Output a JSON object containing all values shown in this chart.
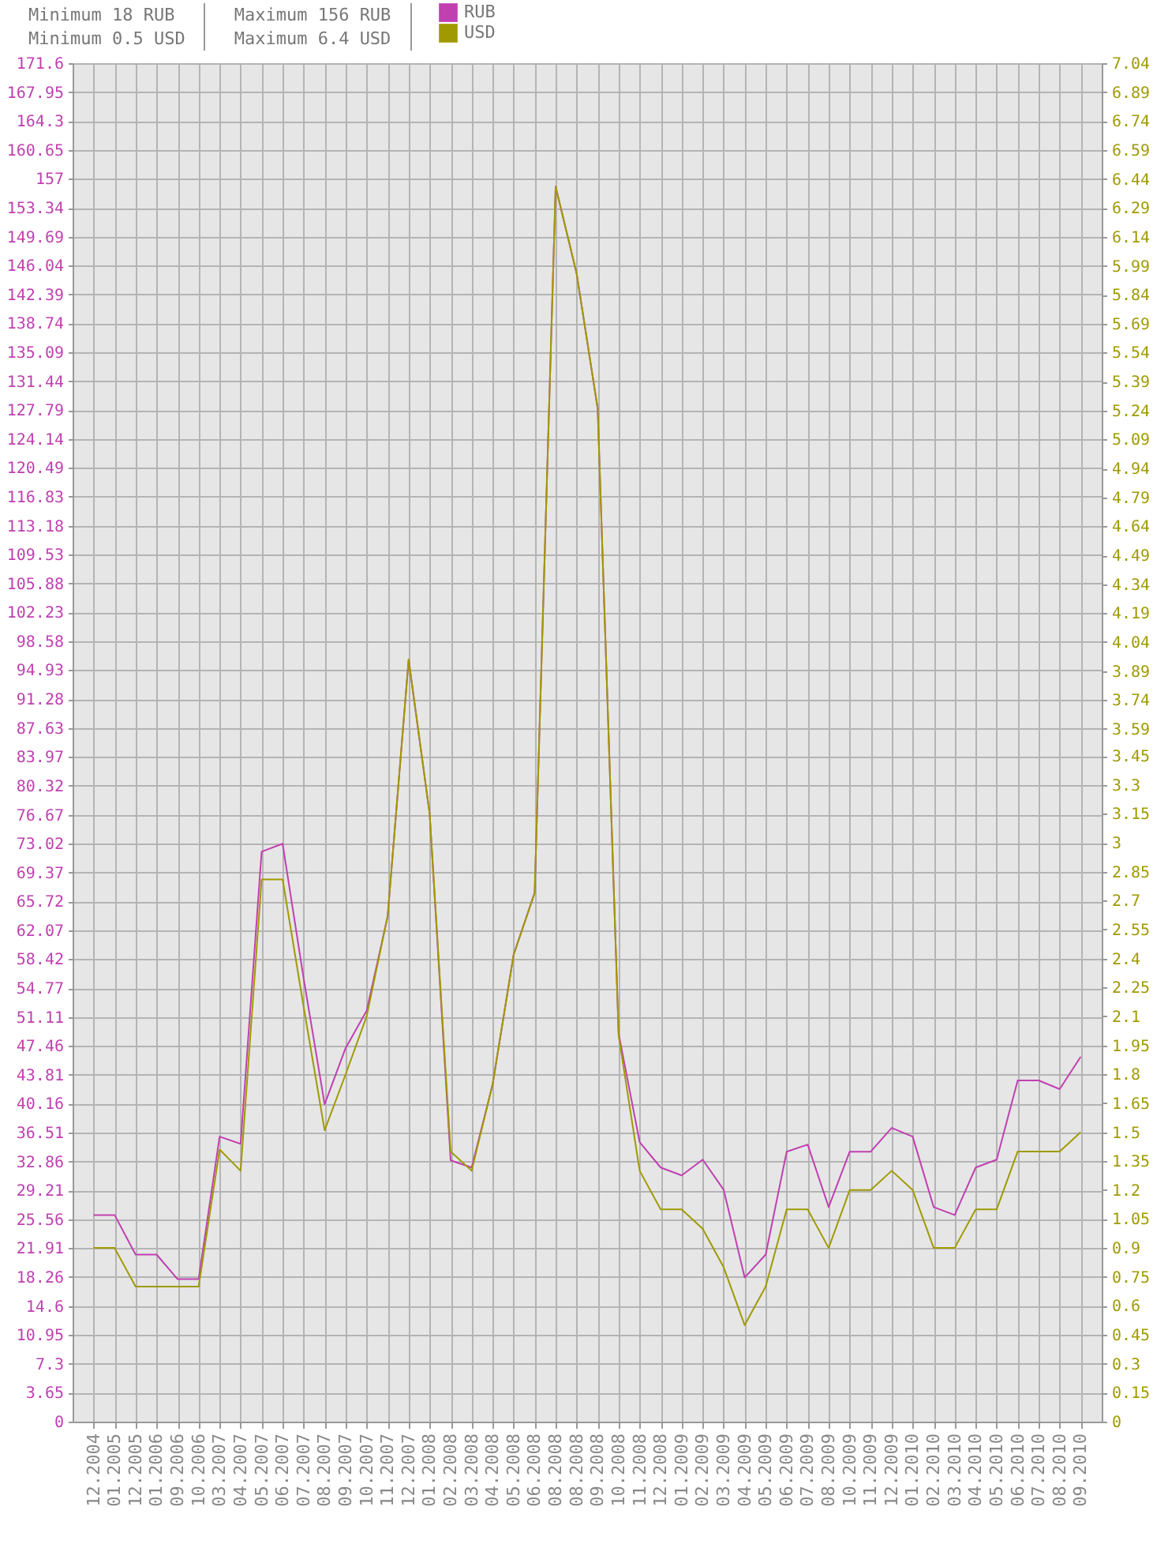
{
  "chart_data": {
    "type": "line",
    "annotations": [
      "Minimum 18 RUB",
      "Minimum 0.5 USD",
      "Maximum 156 RUB",
      "Maximum 6.4 USD"
    ],
    "categories": [
      "12.2004",
      "01.2005",
      "12.2005",
      "01.2006",
      "09.2006",
      "10.2006",
      "03.2007",
      "04.2007",
      "05.2007",
      "06.2007",
      "07.2007",
      "08.2007",
      "09.2007",
      "10.2007",
      "11.2007",
      "12.2007",
      "01.2008",
      "02.2008",
      "03.2008",
      "04.2008",
      "05.2008",
      "06.2008",
      "08.2008",
      "08.2008",
      "09.2008",
      "10.2008",
      "11.2008",
      "12.2008",
      "01.2009",
      "02.2009",
      "03.2009",
      "04.2009",
      "05.2009",
      "06.2009",
      "07.2009",
      "08.2009",
      "10.2009",
      "11.2009",
      "12.2009",
      "01.2010",
      "02.2010",
      "03.2010",
      "04.2010",
      "05.2010",
      "06.2010",
      "07.2010",
      "08.2010",
      "09.2010"
    ],
    "series": [
      {
        "name": "RUB",
        "color": "#c040b0",
        "values": [
          26.1,
          26.1,
          21.1,
          21.1,
          18,
          18,
          36,
          35.1,
          72,
          73,
          56,
          40.1,
          47.2,
          51.9,
          63.8,
          96.2,
          76.8,
          33,
          32.1,
          42.6,
          59,
          66.8,
          156,
          145,
          128,
          49,
          35.3,
          32.1,
          31.1,
          33.1,
          29.3,
          18.2,
          21.1,
          34.1,
          35,
          27.1,
          34.1,
          34.1,
          37.1,
          36,
          27.1,
          26.1,
          32.1,
          33.1,
          43.1,
          43.1,
          42,
          46.1
        ]
      },
      {
        "name": "USD",
        "color": "#a09a00",
        "axis": "y2",
        "values": [
          0.9,
          0.9,
          0.7,
          0.7,
          0.7,
          0.7,
          1.41,
          1.3,
          2.81,
          2.81,
          2.15,
          1.51,
          1.8,
          2.1,
          2.62,
          3.95,
          3.15,
          1.4,
          1.3,
          1.75,
          2.42,
          2.74,
          6.4,
          5.95,
          5.25,
          2.0,
          1.3,
          1.1,
          1.1,
          1.0,
          0.8,
          0.5,
          0.7,
          1.1,
          1.1,
          0.9,
          1.2,
          1.2,
          1.3,
          1.2,
          0.9,
          0.9,
          1.1,
          1.1,
          1.4,
          1.4,
          1.4,
          1.5
        ]
      }
    ],
    "ylim": [
      0,
      171.6
    ],
    "yticks": [
      0,
      3.65,
      7.3,
      10.95,
      14.6,
      18.26,
      21.91,
      25.56,
      29.21,
      32.86,
      36.51,
      40.16,
      43.81,
      47.46,
      51.11,
      54.77,
      58.42,
      62.07,
      65.72,
      69.37,
      73.02,
      76.67,
      80.32,
      83.97,
      87.63,
      91.28,
      94.93,
      98.58,
      102.23,
      105.88,
      109.53,
      113.18,
      116.83,
      120.49,
      124.14,
      127.79,
      131.44,
      135.09,
      138.74,
      142.39,
      146.04,
      149.69,
      153.34,
      157,
      160.65,
      164.3,
      167.95,
      171.6
    ],
    "y2lim": [
      0,
      7.04
    ],
    "y2ticks": [
      0,
      0.15,
      0.3,
      0.45,
      0.6,
      0.75,
      0.9,
      1.05,
      1.2,
      1.35,
      1.5,
      1.65,
      1.8,
      1.95,
      2.1,
      2.25,
      2.4,
      2.55,
      2.7,
      2.85,
      3,
      3.15,
      3.3,
      3.45,
      3.59,
      3.74,
      3.89,
      4.04,
      4.19,
      4.34,
      4.49,
      4.64,
      4.79,
      4.94,
      5.09,
      5.24,
      5.39,
      5.54,
      5.69,
      5.84,
      5.99,
      6.14,
      6.29,
      6.44,
      6.59,
      6.74,
      6.89,
      7.04
    ],
    "grid": true,
    "legend": "top"
  }
}
